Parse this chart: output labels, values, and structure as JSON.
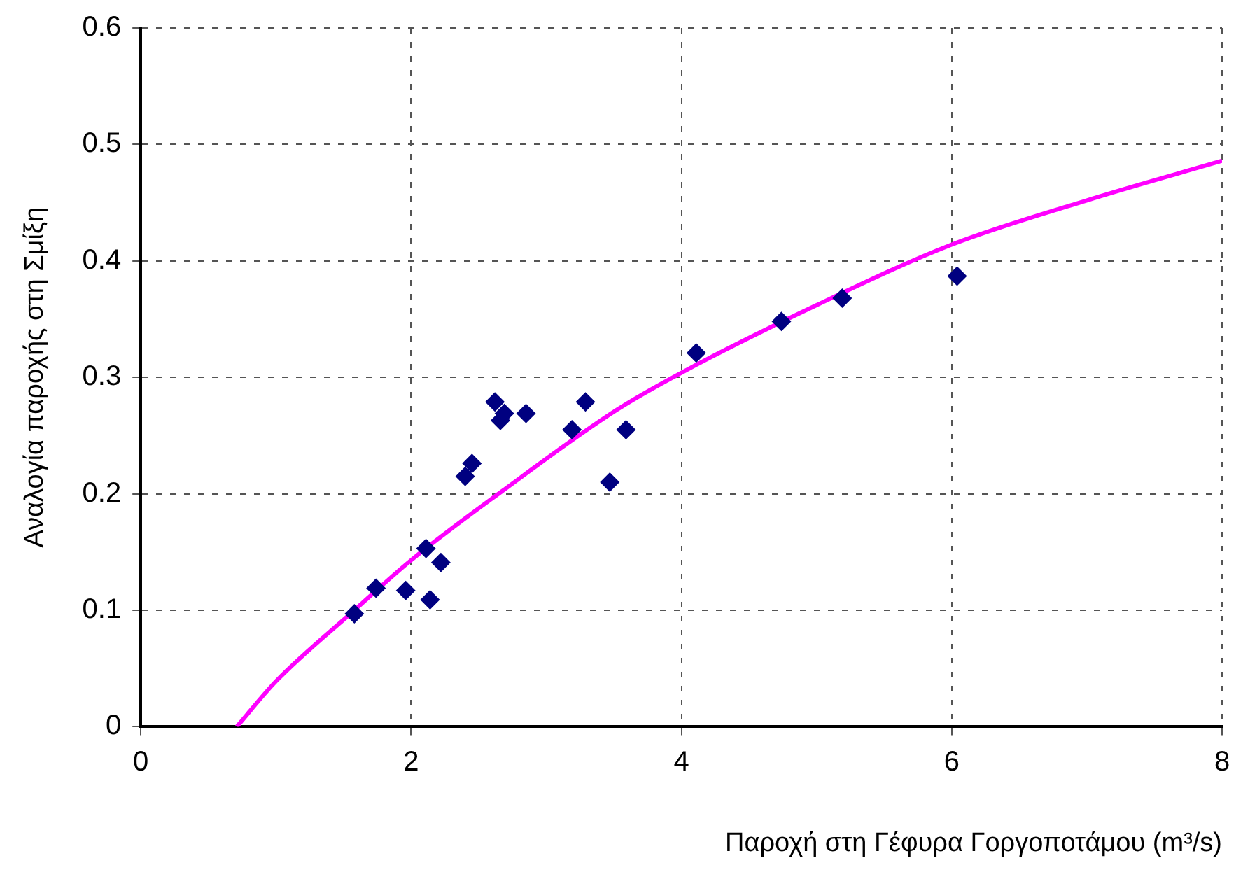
{
  "chart_data": {
    "type": "scatter",
    "xlabel": "Παροχή στη Γέφυρα Γοργοποτάμου (m³/s)",
    "ylabel": "Αναλογία παροχής στη Σμίξη",
    "xlim": [
      0,
      8
    ],
    "xticks": [
      0,
      2,
      4,
      6,
      8
    ],
    "ylim": [
      0,
      0.6
    ],
    "yticks": [
      0,
      0.1,
      0.2,
      0.3,
      0.4,
      0.5,
      0.6
    ],
    "grid": true,
    "legend": false,
    "series": [
      {
        "color": "#000080",
        "marker": "diamond",
        "x": [
          1.58,
          1.74,
          1.96,
          2.11,
          2.14,
          2.22,
          2.4,
          2.45,
          2.62,
          2.66,
          2.69,
          2.85,
          3.19,
          3.29,
          3.47,
          3.59,
          4.11,
          4.74,
          5.19,
          6.04
        ],
        "values": [
          0.097,
          0.119,
          0.117,
          0.153,
          0.109,
          0.141,
          0.215,
          0.226,
          0.279,
          0.263,
          0.269,
          0.269,
          0.255,
          0.279,
          0.21,
          0.255,
          0.321,
          0.348,
          0.368,
          0.387
        ]
      },
      {
        "type": "line",
        "color": "#ff00ff",
        "marker": "none",
        "line_style": "solid",
        "x": [
          0.71,
          1,
          1.58,
          2,
          2.67,
          3.52,
          4,
          5,
          6,
          7,
          8
        ],
        "values": [
          0,
          0.039,
          0.1,
          0.143,
          0.202,
          0.272,
          0.304,
          0.362,
          0.414,
          0.452,
          0.486
        ]
      }
    ]
  }
}
